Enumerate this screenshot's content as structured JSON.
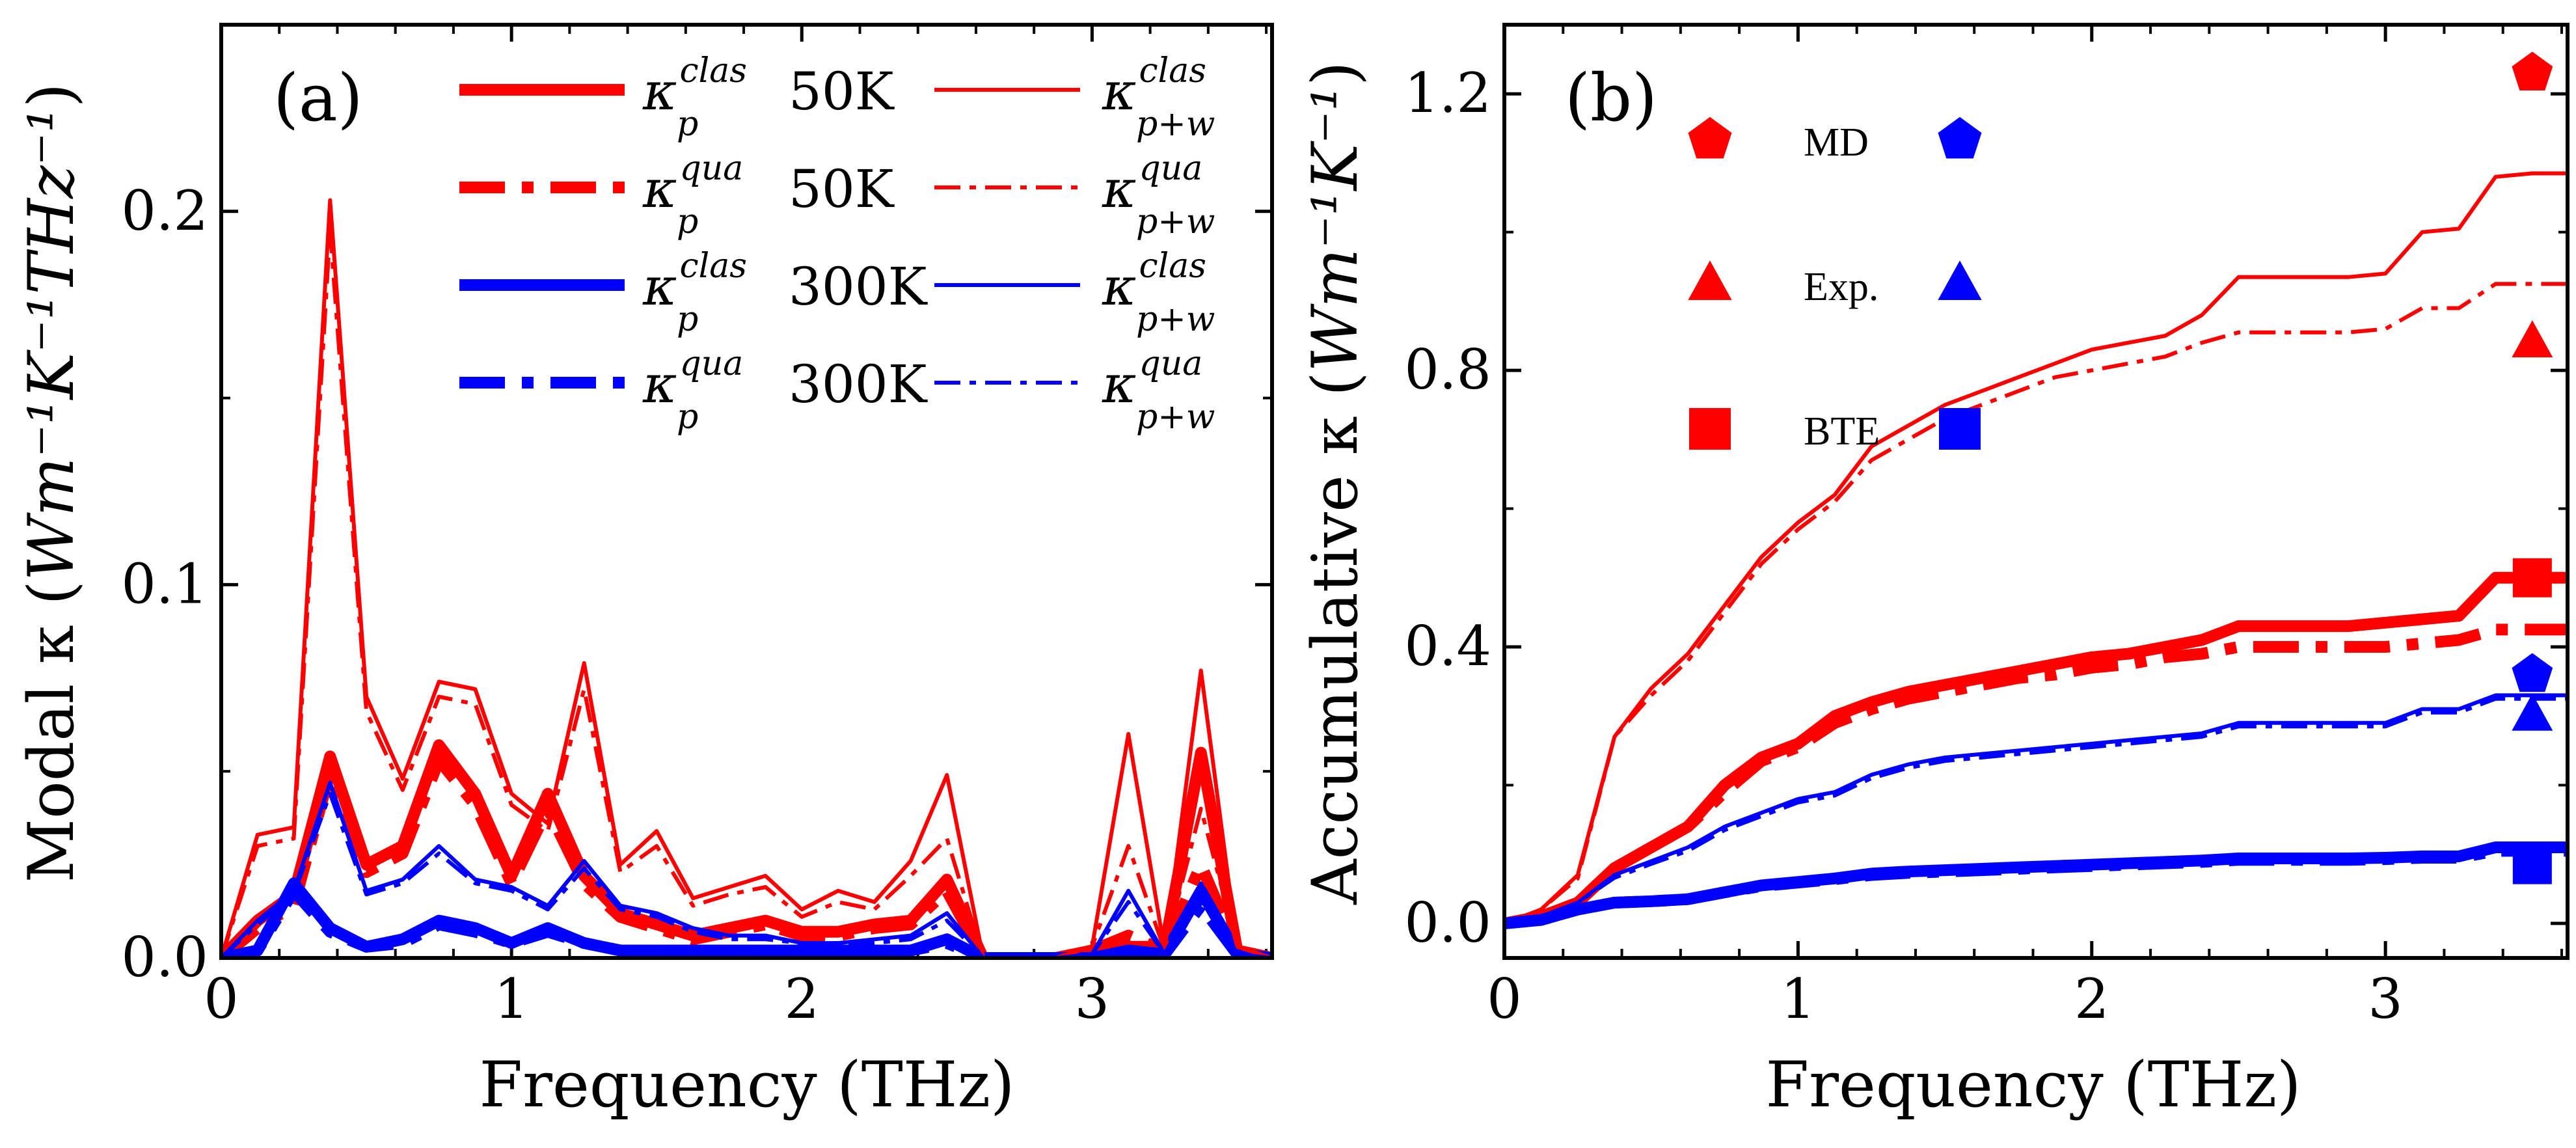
{
  "colors": {
    "red": "#ff0000",
    "blue": "#0000ff",
    "axis": "#000000"
  },
  "chart_data": [
    {
      "type": "line",
      "panel": "(a)",
      "xlabel": "Frequency (THz)",
      "ylabel_prefix": "Modal κ (",
      "ylabel_units": "Wm⁻¹K⁻¹THz⁻¹",
      "ylabel_suffix": ")",
      "xlim": [
        0,
        3.62
      ],
      "ylim": [
        0,
        0.25
      ],
      "xticks": [
        0,
        1,
        2,
        3
      ],
      "xtick_labels": [
        "0",
        "1",
        "2",
        "3"
      ],
      "yticks": [
        0.0,
        0.1,
        0.2
      ],
      "ytick_labels": [
        "0.0",
        "0.1",
        "0.2"
      ],
      "x": [
        0,
        0.125,
        0.25,
        0.375,
        0.5,
        0.625,
        0.75,
        0.875,
        1.0,
        1.125,
        1.25,
        1.375,
        1.5,
        1.625,
        1.75,
        1.875,
        2.0,
        2.125,
        2.25,
        2.375,
        2.5,
        2.625,
        2.75,
        2.875,
        3.0,
        3.125,
        3.25,
        3.375,
        3.5,
        3.62
      ],
      "legend_labels": {
        "clas_sup": "clas",
        "qua_sup": "qua",
        "sub_p": "p",
        "sub_pw": "p+w",
        "kappa": "κ",
        "t50": "50K",
        "t300": "300K"
      },
      "series": [
        {
          "name": "κp clas 50K",
          "color": "red",
          "style": "solid",
          "width": "thick",
          "values": [
            0,
            0.01,
            0.017,
            0.054,
            0.025,
            0.03,
            0.057,
            0.044,
            0.022,
            0.044,
            0.022,
            0.012,
            0.009,
            0.006,
            0.008,
            0.01,
            0.007,
            0.007,
            0.009,
            0.01,
            0.021,
            0.0,
            0.0,
            0.0,
            0.002,
            0.003,
            0.003,
            0.055,
            0.002,
            0.0
          ]
        },
        {
          "name": "κp qua 50K",
          "color": "red",
          "style": "dashdot",
          "width": "thick",
          "values": [
            0,
            0.008,
            0.014,
            0.05,
            0.023,
            0.028,
            0.053,
            0.041,
            0.02,
            0.04,
            0.02,
            0.011,
            0.008,
            0.005,
            0.007,
            0.009,
            0.006,
            0.006,
            0.008,
            0.009,
            0.018,
            0.0,
            0.0,
            0.0,
            0.002,
            0.006,
            0.002,
            0.025,
            0.002,
            0.0
          ]
        },
        {
          "name": "κp clas 300K",
          "color": "blue",
          "style": "solid",
          "width": "thick",
          "values": [
            0,
            0.002,
            0.02,
            0.008,
            0.003,
            0.005,
            0.01,
            0.008,
            0.004,
            0.008,
            0.004,
            0.002,
            0.002,
            0.002,
            0.002,
            0.002,
            0.002,
            0.002,
            0.002,
            0.002,
            0.005,
            0.0,
            0.0,
            0.0,
            0.0,
            0.002,
            0.001,
            0.018,
            0.001,
            0.0
          ]
        },
        {
          "name": "κp qua 300K",
          "color": "blue",
          "style": "dashdot",
          "width": "thick",
          "values": [
            0,
            0.002,
            0.018,
            0.007,
            0.003,
            0.004,
            0.009,
            0.007,
            0.004,
            0.007,
            0.004,
            0.002,
            0.002,
            0.002,
            0.002,
            0.002,
            0.002,
            0.002,
            0.002,
            0.002,
            0.004,
            0.0,
            0.0,
            0.0,
            0.0,
            0.002,
            0.001,
            0.014,
            0.001,
            0.0
          ]
        },
        {
          "name": "κp+w clas 50K",
          "color": "red",
          "style": "solid",
          "width": "thin",
          "values": [
            0,
            0.033,
            0.035,
            0.203,
            0.07,
            0.048,
            0.074,
            0.072,
            0.044,
            0.036,
            0.079,
            0.025,
            0.034,
            0.016,
            0.019,
            0.022,
            0.013,
            0.018,
            0.015,
            0.026,
            0.049,
            0.0,
            0.0,
            0.0,
            0.003,
            0.06,
            0.002,
            0.077,
            0.003,
            0.0
          ]
        },
        {
          "name": "κp+w qua 50K",
          "color": "red",
          "style": "dashdot",
          "width": "thin",
          "values": [
            0,
            0.03,
            0.032,
            0.195,
            0.066,
            0.045,
            0.07,
            0.068,
            0.041,
            0.034,
            0.072,
            0.023,
            0.03,
            0.014,
            0.017,
            0.019,
            0.011,
            0.015,
            0.013,
            0.022,
            0.032,
            0.0,
            0.0,
            0.0,
            0.003,
            0.03,
            0.002,
            0.04,
            0.003,
            0.0
          ]
        },
        {
          "name": "κp+w clas 300K",
          "color": "blue",
          "style": "solid",
          "width": "thin",
          "values": [
            0,
            0.01,
            0.018,
            0.047,
            0.018,
            0.021,
            0.03,
            0.021,
            0.019,
            0.014,
            0.026,
            0.014,
            0.012,
            0.008,
            0.006,
            0.006,
            0.004,
            0.004,
            0.005,
            0.006,
            0.012,
            0.0,
            0.0,
            0.0,
            0.001,
            0.018,
            0.001,
            0.02,
            0.001,
            0.0
          ]
        },
        {
          "name": "κp+w qua 300K",
          "color": "blue",
          "style": "dashdot",
          "width": "thin",
          "values": [
            0,
            0.009,
            0.017,
            0.044,
            0.017,
            0.02,
            0.028,
            0.02,
            0.018,
            0.013,
            0.024,
            0.013,
            0.011,
            0.007,
            0.005,
            0.005,
            0.004,
            0.004,
            0.004,
            0.005,
            0.01,
            0.0,
            0.0,
            0.0,
            0.001,
            0.015,
            0.001,
            0.016,
            0.001,
            0.0
          ]
        }
      ]
    },
    {
      "type": "line",
      "panel": "(b)",
      "xlabel": "Frequency (THz)",
      "ylabel_prefix": "Accumulative κ (",
      "ylabel_units": "Wm⁻¹K⁻¹",
      "ylabel_suffix": ")",
      "xlim": [
        0,
        3.62
      ],
      "ylim": [
        -0.05,
        1.3
      ],
      "xticks": [
        0,
        1,
        2,
        3
      ],
      "xtick_labels": [
        "0",
        "1",
        "2",
        "3"
      ],
      "yticks": [
        0.0,
        0.4,
        0.8,
        1.2
      ],
      "ytick_labels": [
        "0.0",
        "0.4",
        "0.8",
        "1.2"
      ],
      "x": [
        0,
        0.125,
        0.25,
        0.375,
        0.5,
        0.625,
        0.75,
        0.875,
        1.0,
        1.125,
        1.25,
        1.375,
        1.5,
        1.625,
        1.75,
        1.875,
        2.0,
        2.125,
        2.25,
        2.375,
        2.5,
        2.625,
        2.75,
        2.875,
        3.0,
        3.125,
        3.25,
        3.375,
        3.5,
        3.62
      ],
      "series": [
        {
          "name": "κp+w clas 50K",
          "color": "red",
          "style": "solid",
          "width": "thin",
          "values": [
            0,
            0.02,
            0.07,
            0.27,
            0.34,
            0.39,
            0.46,
            0.53,
            0.58,
            0.62,
            0.69,
            0.72,
            0.75,
            0.77,
            0.79,
            0.81,
            0.83,
            0.84,
            0.85,
            0.88,
            0.935,
            0.935,
            0.935,
            0.935,
            0.94,
            1.0,
            1.005,
            1.08,
            1.085,
            1.085
          ]
        },
        {
          "name": "κp+w qua 50K",
          "color": "red",
          "style": "dashdot",
          "width": "thin",
          "values": [
            0,
            0.02,
            0.065,
            0.27,
            0.33,
            0.38,
            0.45,
            0.52,
            0.57,
            0.61,
            0.67,
            0.7,
            0.73,
            0.75,
            0.77,
            0.79,
            0.8,
            0.81,
            0.82,
            0.84,
            0.855,
            0.855,
            0.855,
            0.855,
            0.86,
            0.89,
            0.89,
            0.925,
            0.925,
            0.925
          ]
        },
        {
          "name": "κp clas 50K",
          "color": "red",
          "style": "solid",
          "width": "thick",
          "values": [
            0,
            0.01,
            0.03,
            0.08,
            0.11,
            0.14,
            0.2,
            0.24,
            0.26,
            0.3,
            0.32,
            0.335,
            0.345,
            0.355,
            0.365,
            0.375,
            0.385,
            0.39,
            0.4,
            0.41,
            0.43,
            0.43,
            0.43,
            0.43,
            0.435,
            0.44,
            0.445,
            0.5,
            0.5,
            0.5
          ]
        },
        {
          "name": "κp qua 50K",
          "color": "red",
          "style": "dashdot",
          "width": "thick",
          "values": [
            0,
            0.01,
            0.03,
            0.08,
            0.11,
            0.14,
            0.19,
            0.235,
            0.255,
            0.29,
            0.31,
            0.325,
            0.335,
            0.345,
            0.355,
            0.36,
            0.37,
            0.375,
            0.385,
            0.39,
            0.4,
            0.4,
            0.4,
            0.4,
            0.4,
            0.405,
            0.41,
            0.425,
            0.425,
            0.425
          ]
        },
        {
          "name": "κp+w clas 300K",
          "color": "blue",
          "style": "solid",
          "width": "thin",
          "values": [
            0,
            0.01,
            0.03,
            0.07,
            0.09,
            0.11,
            0.14,
            0.16,
            0.18,
            0.19,
            0.215,
            0.23,
            0.24,
            0.245,
            0.25,
            0.255,
            0.26,
            0.265,
            0.27,
            0.275,
            0.29,
            0.29,
            0.29,
            0.29,
            0.29,
            0.31,
            0.31,
            0.33,
            0.33,
            0.33
          ]
        },
        {
          "name": "κp+w qua 300K",
          "color": "blue",
          "style": "dashdot",
          "width": "thin",
          "values": [
            0,
            0.01,
            0.03,
            0.066,
            0.086,
            0.105,
            0.135,
            0.155,
            0.175,
            0.185,
            0.21,
            0.225,
            0.235,
            0.24,
            0.245,
            0.25,
            0.255,
            0.26,
            0.265,
            0.27,
            0.285,
            0.285,
            0.285,
            0.285,
            0.285,
            0.305,
            0.305,
            0.325,
            0.325,
            0.325
          ]
        },
        {
          "name": "κp clas 300K",
          "color": "blue",
          "style": "solid",
          "width": "thick",
          "values": [
            0,
            0.005,
            0.02,
            0.03,
            0.032,
            0.035,
            0.045,
            0.055,
            0.06,
            0.065,
            0.072,
            0.075,
            0.077,
            0.079,
            0.081,
            0.083,
            0.085,
            0.087,
            0.089,
            0.091,
            0.094,
            0.094,
            0.094,
            0.094,
            0.095,
            0.097,
            0.097,
            0.11,
            0.11,
            0.11
          ]
        },
        {
          "name": "κp qua 300K",
          "color": "blue",
          "style": "dashdot",
          "width": "thick",
          "values": [
            0,
            0.005,
            0.02,
            0.03,
            0.032,
            0.035,
            0.045,
            0.054,
            0.059,
            0.064,
            0.07,
            0.073,
            0.075,
            0.077,
            0.079,
            0.081,
            0.083,
            0.085,
            0.087,
            0.089,
            0.092,
            0.092,
            0.092,
            0.092,
            0.093,
            0.095,
            0.095,
            0.105,
            0.105,
            0.105
          ]
        }
      ],
      "markers": [
        {
          "name": "MD 50K",
          "shape": "pentagon",
          "color": "red",
          "x": 3.5,
          "y": 1.23
        },
        {
          "name": "Exp. 50K",
          "shape": "triangle",
          "color": "red",
          "x": 3.5,
          "y": 0.84
        },
        {
          "name": "BTE 50K",
          "shape": "square",
          "color": "red",
          "x": 3.5,
          "y": 0.5
        },
        {
          "name": "MD 300K",
          "shape": "pentagon",
          "color": "blue",
          "x": 3.5,
          "y": 0.36
        },
        {
          "name": "Exp. 300K",
          "shape": "triangle",
          "color": "blue",
          "x": 3.5,
          "y": 0.3
        },
        {
          "name": "BTE 300K",
          "shape": "square",
          "color": "blue",
          "x": 3.5,
          "y": 0.085
        }
      ],
      "legend": [
        {
          "label": "MD",
          "shape": "pentagon"
        },
        {
          "label": "Exp.",
          "shape": "triangle"
        },
        {
          "label": "BTE",
          "shape": "square"
        }
      ]
    }
  ]
}
